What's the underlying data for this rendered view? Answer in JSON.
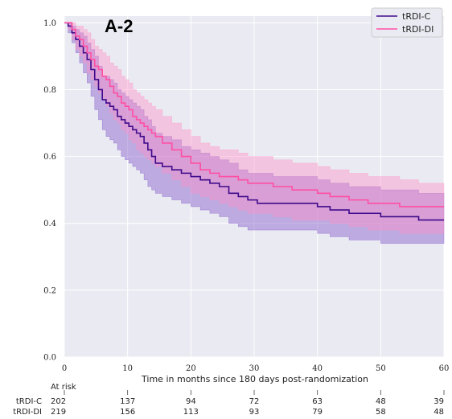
{
  "chart_data": {
    "type": "line",
    "subtype": "kaplan-meier",
    "panel_label": "A-2",
    "title": "",
    "xlabel": "Time in months since 180 days post-randomization",
    "ylabel": "",
    "xlim": [
      0,
      60
    ],
    "ylim": [
      0,
      1.02
    ],
    "x_ticks": [
      0,
      10,
      20,
      30,
      40,
      50,
      60
    ],
    "y_ticks": [
      0.0,
      0.2,
      0.4,
      0.6,
      0.8,
      1.0
    ],
    "x_tick_labels": [
      "0",
      "10",
      "20",
      "30",
      "40",
      "50",
      "60"
    ],
    "y_tick_labels": [
      "0.0",
      "0.2",
      "0.4",
      "0.6",
      "0.8",
      "1.0"
    ],
    "grid": true,
    "legend_position": "top-right",
    "series": [
      {
        "name": "tRDI-C",
        "color": "#3f0a8c",
        "band_color": "#7b52c8",
        "x": [
          0,
          0.6,
          1.2,
          1.8,
          2.4,
          3.0,
          3.6,
          4.2,
          4.8,
          5.4,
          6.0,
          6.6,
          7.2,
          7.8,
          8.4,
          9.0,
          9.6,
          10.2,
          10.8,
          11.4,
          12.0,
          12.6,
          13.2,
          13.8,
          14.4,
          15.5,
          17.0,
          18.5,
          20.0,
          21.5,
          23.0,
          24.5,
          26.0,
          27.5,
          29.0,
          30.5,
          33.0,
          36.0,
          40.0,
          42.0,
          45.0,
          48.0,
          50.0,
          53.0,
          56.0,
          60.0
        ],
        "y": [
          1.0,
          0.99,
          0.97,
          0.95,
          0.93,
          0.91,
          0.89,
          0.86,
          0.83,
          0.8,
          0.77,
          0.76,
          0.75,
          0.74,
          0.72,
          0.71,
          0.7,
          0.69,
          0.68,
          0.67,
          0.66,
          0.64,
          0.62,
          0.6,
          0.58,
          0.57,
          0.56,
          0.55,
          0.54,
          0.53,
          0.52,
          0.51,
          0.49,
          0.48,
          0.47,
          0.46,
          0.46,
          0.46,
          0.45,
          0.44,
          0.43,
          0.43,
          0.42,
          0.42,
          0.41,
          0.41
        ],
        "ci_lower": [
          1.0,
          0.97,
          0.94,
          0.91,
          0.88,
          0.85,
          0.82,
          0.78,
          0.74,
          0.71,
          0.68,
          0.66,
          0.65,
          0.64,
          0.62,
          0.6,
          0.59,
          0.58,
          0.57,
          0.56,
          0.55,
          0.53,
          0.51,
          0.5,
          0.49,
          0.48,
          0.47,
          0.46,
          0.45,
          0.44,
          0.43,
          0.42,
          0.4,
          0.39,
          0.38,
          0.38,
          0.38,
          0.38,
          0.37,
          0.36,
          0.35,
          0.35,
          0.34,
          0.34,
          0.34,
          0.34
        ],
        "ci_upper": [
          1.0,
          1.0,
          0.99,
          0.98,
          0.97,
          0.96,
          0.94,
          0.92,
          0.9,
          0.87,
          0.84,
          0.84,
          0.83,
          0.82,
          0.8,
          0.79,
          0.78,
          0.77,
          0.76,
          0.75,
          0.74,
          0.72,
          0.71,
          0.69,
          0.67,
          0.66,
          0.65,
          0.63,
          0.62,
          0.61,
          0.6,
          0.59,
          0.58,
          0.56,
          0.55,
          0.55,
          0.54,
          0.54,
          0.53,
          0.52,
          0.51,
          0.51,
          0.5,
          0.5,
          0.49,
          0.49
        ]
      },
      {
        "name": "tRDI-DI",
        "color": "#ff4fa3",
        "band_color": "#ff8fc5",
        "x": [
          0,
          0.6,
          1.2,
          1.8,
          2.4,
          3.0,
          3.6,
          4.2,
          4.8,
          5.4,
          6.0,
          6.6,
          7.2,
          7.8,
          8.4,
          9.0,
          9.6,
          10.2,
          10.8,
          11.4,
          12.0,
          12.6,
          13.2,
          13.8,
          14.4,
          15.5,
          17.0,
          18.5,
          20.0,
          21.5,
          23.0,
          24.5,
          26.0,
          27.5,
          29.0,
          30.5,
          33.0,
          36.0,
          40.0,
          42.0,
          45.0,
          48.0,
          50.0,
          53.0,
          56.0,
          60.0
        ],
        "y": [
          1.0,
          1.0,
          0.98,
          0.96,
          0.95,
          0.93,
          0.91,
          0.89,
          0.87,
          0.86,
          0.84,
          0.83,
          0.81,
          0.79,
          0.78,
          0.76,
          0.75,
          0.74,
          0.72,
          0.71,
          0.7,
          0.69,
          0.68,
          0.67,
          0.66,
          0.64,
          0.62,
          0.6,
          0.58,
          0.56,
          0.55,
          0.54,
          0.54,
          0.53,
          0.52,
          0.52,
          0.51,
          0.5,
          0.49,
          0.48,
          0.47,
          0.46,
          0.46,
          0.45,
          0.45,
          0.45
        ],
        "ci_lower": [
          1.0,
          0.98,
          0.95,
          0.92,
          0.9,
          0.88,
          0.85,
          0.83,
          0.81,
          0.79,
          0.77,
          0.75,
          0.73,
          0.71,
          0.7,
          0.68,
          0.67,
          0.65,
          0.64,
          0.62,
          0.61,
          0.6,
          0.59,
          0.58,
          0.57,
          0.55,
          0.53,
          0.51,
          0.49,
          0.48,
          0.47,
          0.46,
          0.45,
          0.44,
          0.43,
          0.43,
          0.42,
          0.41,
          0.41,
          0.4,
          0.39,
          0.38,
          0.38,
          0.37,
          0.37,
          0.37
        ],
        "ci_upper": [
          1.0,
          1.0,
          1.0,
          0.99,
          0.99,
          0.98,
          0.97,
          0.95,
          0.93,
          0.92,
          0.91,
          0.9,
          0.88,
          0.87,
          0.86,
          0.84,
          0.83,
          0.82,
          0.8,
          0.79,
          0.78,
          0.77,
          0.76,
          0.75,
          0.74,
          0.72,
          0.7,
          0.68,
          0.66,
          0.64,
          0.63,
          0.62,
          0.62,
          0.61,
          0.6,
          0.6,
          0.59,
          0.58,
          0.57,
          0.56,
          0.55,
          0.54,
          0.54,
          0.53,
          0.52,
          0.52
        ]
      }
    ],
    "at_risk": {
      "label": "At risk",
      "times": [
        0,
        10,
        20,
        30,
        40,
        50,
        60
      ],
      "rows": [
        {
          "name": "tRDI-C",
          "counts": [
            "202",
            "137",
            "94",
            "72",
            "63",
            "48",
            "39"
          ]
        },
        {
          "name": "tRDI-DI",
          "counts": [
            "219",
            "156",
            "113",
            "93",
            "79",
            "58",
            "48"
          ]
        }
      ]
    }
  }
}
